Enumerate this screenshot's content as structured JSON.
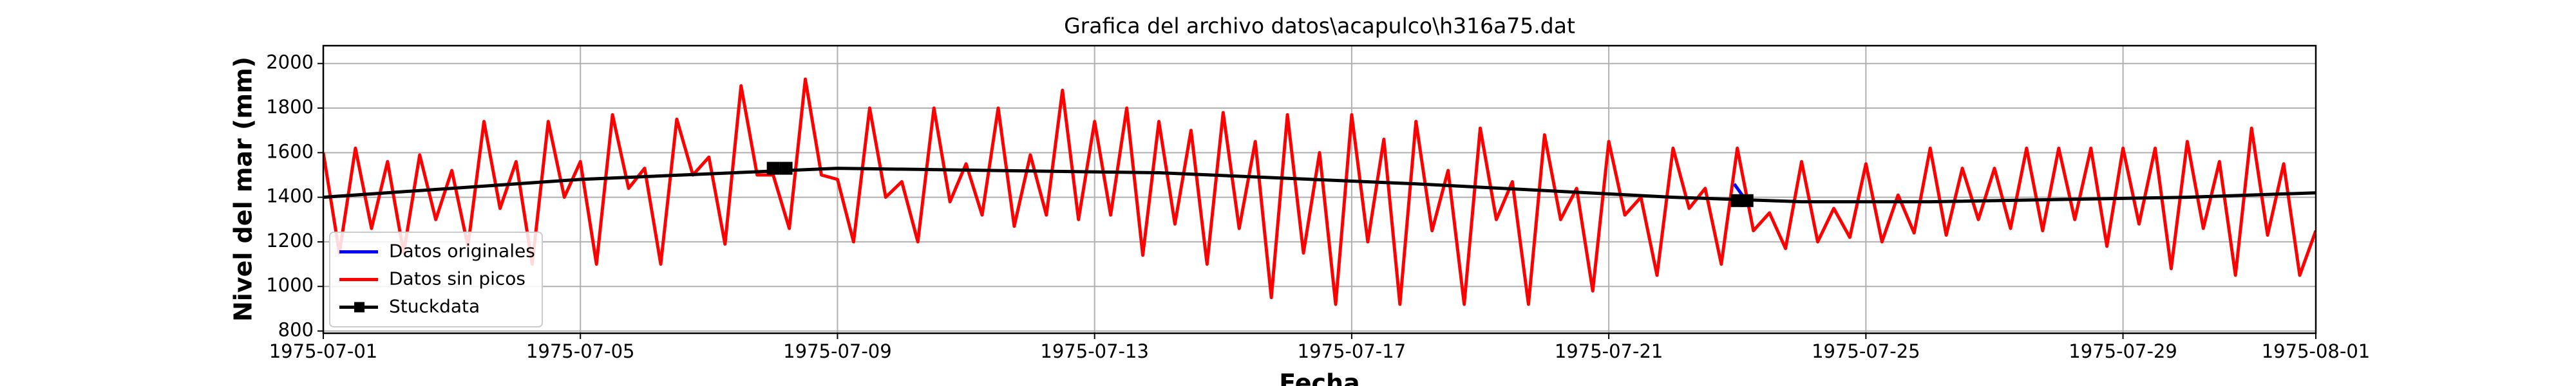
{
  "chart_data": {
    "type": "line",
    "title": "Grafica del archivo datos\\acapulco\\h316a75.dat",
    "x_label": "Fecha",
    "y_label": "Nivel del mar (mm)",
    "xlim": [
      0,
      31
    ],
    "xticks": [
      {
        "value": 0,
        "label": "1975-07-01"
      },
      {
        "value": 4,
        "label": "1975-07-05"
      },
      {
        "value": 8,
        "label": "1975-07-09"
      },
      {
        "value": 12,
        "label": "1975-07-13"
      },
      {
        "value": 16,
        "label": "1975-07-17"
      },
      {
        "value": 20,
        "label": "1975-07-21"
      },
      {
        "value": 24,
        "label": "1975-07-25"
      },
      {
        "value": 28,
        "label": "1975-07-29"
      },
      {
        "value": 31,
        "label": "1975-08-01"
      }
    ],
    "ylim": [
      790,
      2080
    ],
    "yticks": [
      800,
      1000,
      1200,
      1400,
      1600,
      1800,
      2000
    ],
    "grid": true,
    "legend": "lower left",
    "series": [
      {
        "name": "Datos originales",
        "color": "#0000ff",
        "x": [
          21.95,
          22.1,
          22.2
        ],
        "values": [
          1460,
          1400,
          1380
        ]
      },
      {
        "name": "Datos sin picos",
        "color": "#ff0000",
        "x": [
          0,
          0.25,
          0.5,
          0.75,
          1,
          1.25,
          1.5,
          1.75,
          2,
          2.25,
          2.5,
          2.75,
          3,
          3.25,
          3.5,
          3.75,
          4,
          4.25,
          4.5,
          4.75,
          5,
          5.25,
          5.5,
          5.75,
          6,
          6.25,
          6.5,
          6.75,
          7,
          7.25,
          7.5,
          7.75,
          8,
          8.25,
          8.5,
          8.75,
          9,
          9.25,
          9.5,
          9.75,
          10,
          10.25,
          10.5,
          10.75,
          11,
          11.25,
          11.5,
          11.75,
          12,
          12.25,
          12.5,
          12.75,
          13,
          13.25,
          13.5,
          13.75,
          14,
          14.25,
          14.5,
          14.75,
          15,
          15.25,
          15.5,
          15.75,
          16,
          16.25,
          16.5,
          16.75,
          17,
          17.25,
          17.5,
          17.75,
          18,
          18.25,
          18.5,
          18.75,
          19,
          19.25,
          19.5,
          19.75,
          20,
          20.25,
          20.5,
          20.75,
          21,
          21.25,
          21.5,
          21.75,
          22,
          22.25,
          22.5,
          22.75,
          23,
          23.25,
          23.5,
          23.75,
          24,
          24.25,
          24.5,
          24.75,
          25,
          25.25,
          25.5,
          25.75,
          26,
          26.25,
          26.5,
          26.75,
          27,
          27.25,
          27.5,
          27.75,
          28,
          28.25,
          28.5,
          28.75,
          29,
          29.25,
          29.5,
          29.75,
          30,
          30.25,
          30.5,
          30.75,
          31
        ],
        "values": [
          1600,
          1150,
          1620,
          1260,
          1560,
          1150,
          1590,
          1300,
          1520,
          1180,
          1740,
          1350,
          1560,
          1100,
          1740,
          1400,
          1560,
          1100,
          1770,
          1440,
          1530,
          1100,
          1750,
          1500,
          1580,
          1190,
          1900,
          1500,
          1500,
          1260,
          1930,
          1500,
          1480,
          1200,
          1800,
          1400,
          1470,
          1200,
          1800,
          1380,
          1550,
          1320,
          1800,
          1270,
          1590,
          1320,
          1880,
          1300,
          1740,
          1320,
          1800,
          1140,
          1740,
          1280,
          1700,
          1100,
          1780,
          1260,
          1650,
          950,
          1770,
          1150,
          1600,
          920,
          1770,
          1200,
          1660,
          920,
          1740,
          1250,
          1520,
          920,
          1710,
          1300,
          1470,
          920,
          1680,
          1300,
          1440,
          980,
          1650,
          1320,
          1400,
          1050,
          1620,
          1350,
          1440,
          1100,
          1620,
          1250,
          1330,
          1170,
          1560,
          1200,
          1350,
          1220,
          1550,
          1200,
          1410,
          1240,
          1620,
          1230,
          1530,
          1300,
          1530,
          1260,
          1620,
          1250,
          1620,
          1300,
          1620,
          1180,
          1620,
          1280,
          1620,
          1080,
          1650,
          1260,
          1560,
          1050,
          1710,
          1230,
          1550,
          1050,
          1250
        ]
      },
      {
        "color": "#000000",
        "x": [
          0,
          4,
          8,
          13,
          17,
          21,
          23,
          25,
          29,
          31
        ],
        "values": [
          1400,
          1480,
          1530,
          1510,
          1460,
          1400,
          1380,
          1380,
          1400,
          1420
        ]
      },
      {
        "name": "Stuckdata",
        "color": "#000000",
        "marker": "s",
        "x": [
          7.0,
          7.2,
          15,
          22.0,
          22.15
        ],
        "values": [
          1530,
          1530,
          null,
          1385,
          1385
        ]
      }
    ]
  }
}
